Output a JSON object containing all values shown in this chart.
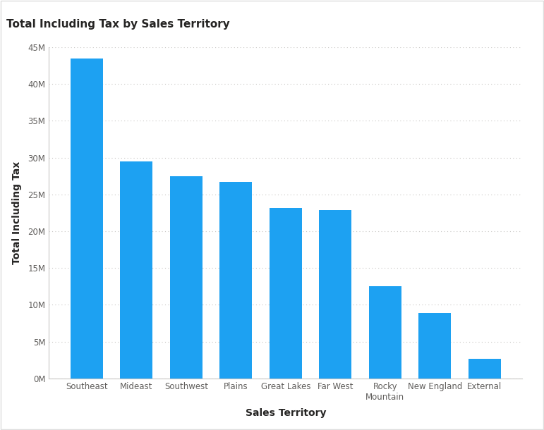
{
  "title": "Total Including Tax by Sales Territory",
  "xlabel": "Sales Territory",
  "ylabel": "Total Including Tax",
  "categories": [
    "Southeast",
    "Mideast",
    "Southwest",
    "Plains",
    "Great Lakes",
    "Far West",
    "Rocky\nMountain",
    "New England",
    "External"
  ],
  "values": [
    43500000,
    29500000,
    27500000,
    26700000,
    23200000,
    22900000,
    12500000,
    8900000,
    2700000
  ],
  "bar_color": "#1DA1F2",
  "background_color": "#FFFFFF",
  "plot_bg_color": "#FFFFFF",
  "title_color": "#252423",
  "axis_label_color": "#252423",
  "tick_label_color": "#605E5C",
  "grid_color": "#C8C6C4",
  "ylim": [
    0,
    45000000
  ],
  "yticks": [
    0,
    5000000,
    10000000,
    15000000,
    20000000,
    25000000,
    30000000,
    35000000,
    40000000,
    45000000
  ],
  "title_fontsize": 11,
  "axis_label_fontsize": 10,
  "tick_fontsize": 8.5,
  "border_color": "#C8C6C4",
  "outer_border_color": "#DDDDDD"
}
